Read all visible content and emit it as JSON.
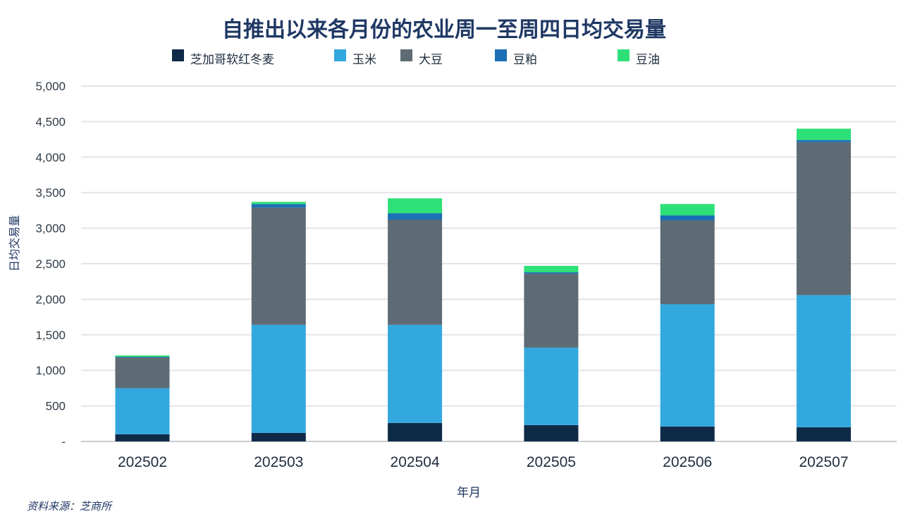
{
  "chart_data": {
    "type": "bar",
    "stacked": true,
    "title": "自推出以来各月份的农业周一至周四日均交易量",
    "xlabel": "年月",
    "ylabel": "日均交易量",
    "ylim": [
      0,
      5000
    ],
    "y_ticks": [
      0,
      500,
      1000,
      1500,
      2000,
      2500,
      3000,
      3500,
      4000,
      4500,
      5000
    ],
    "y_tick_labels": [
      "-",
      "500",
      "1,000",
      "1,500",
      "2,000",
      "2,500",
      "3,000",
      "3,500",
      "4,000",
      "4,500",
      "5,000"
    ],
    "categories": [
      "202502",
      "202503",
      "202504",
      "202505",
      "202506",
      "202507"
    ],
    "grid": true,
    "legend_position": "top",
    "series": [
      {
        "name": "芝加哥软红冬麦",
        "color": "#0e2a47",
        "values": [
          100,
          120,
          260,
          230,
          210,
          200
        ]
      },
      {
        "name": "玉米",
        "color": "#33a8df",
        "values": [
          650,
          1520,
          1380,
          1090,
          1720,
          1860
        ]
      },
      {
        "name": "大豆",
        "color": "#5e6b74",
        "values": [
          430,
          1650,
          1480,
          1040,
          1180,
          2150
        ]
      },
      {
        "name": "豆粕",
        "color": "#1a6fb5",
        "values": [
          10,
          50,
          90,
          20,
          70,
          30
        ]
      },
      {
        "name": "豆油",
        "color": "#2ee078",
        "values": [
          20,
          30,
          210,
          90,
          160,
          160
        ]
      }
    ]
  },
  "source_note": "资料来源：芝商所"
}
